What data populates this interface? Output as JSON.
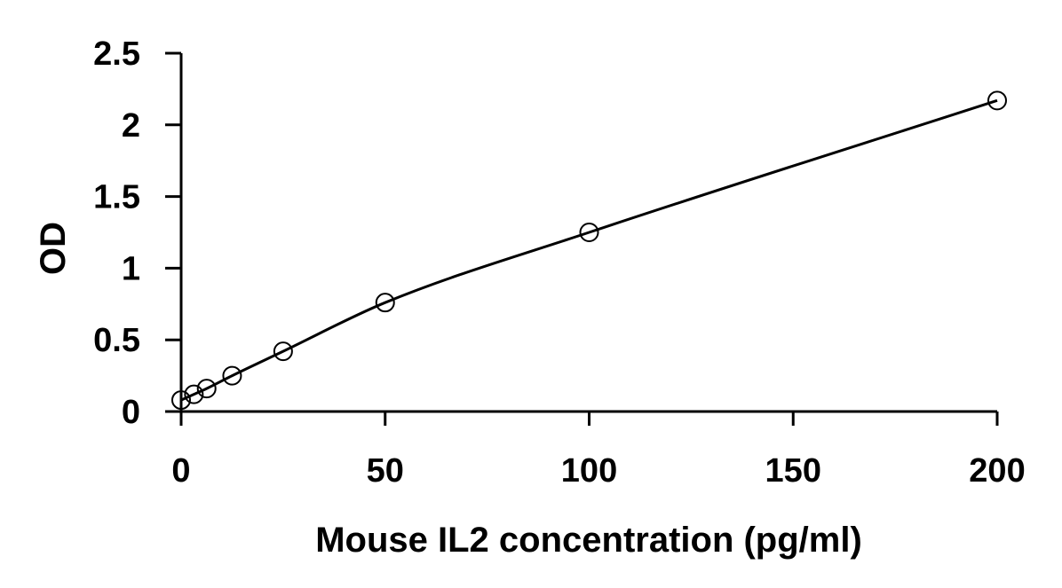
{
  "chart_data": {
    "type": "scatter",
    "title": "",
    "xlabel": "Mouse IL2 concentration (pg/ml)",
    "ylabel": "OD",
    "xlim": [
      0,
      200
    ],
    "ylim": [
      0,
      2.5
    ],
    "x_ticks": [
      "0",
      "50",
      "100",
      "150",
      "200"
    ],
    "y_ticks": [
      "0",
      "0.5",
      "1",
      "1.5",
      "2",
      "2.5"
    ],
    "grid": false,
    "legend": "none",
    "series": [
      {
        "x": [
          0,
          3.125,
          6.25,
          12.5,
          25,
          50,
          100,
          200
        ],
        "y": [
          0.08,
          0.12,
          0.16,
          0.25,
          0.42,
          0.76,
          1.25,
          2.17
        ],
        "marker": "open-circle",
        "fit_line": true
      }
    ]
  }
}
